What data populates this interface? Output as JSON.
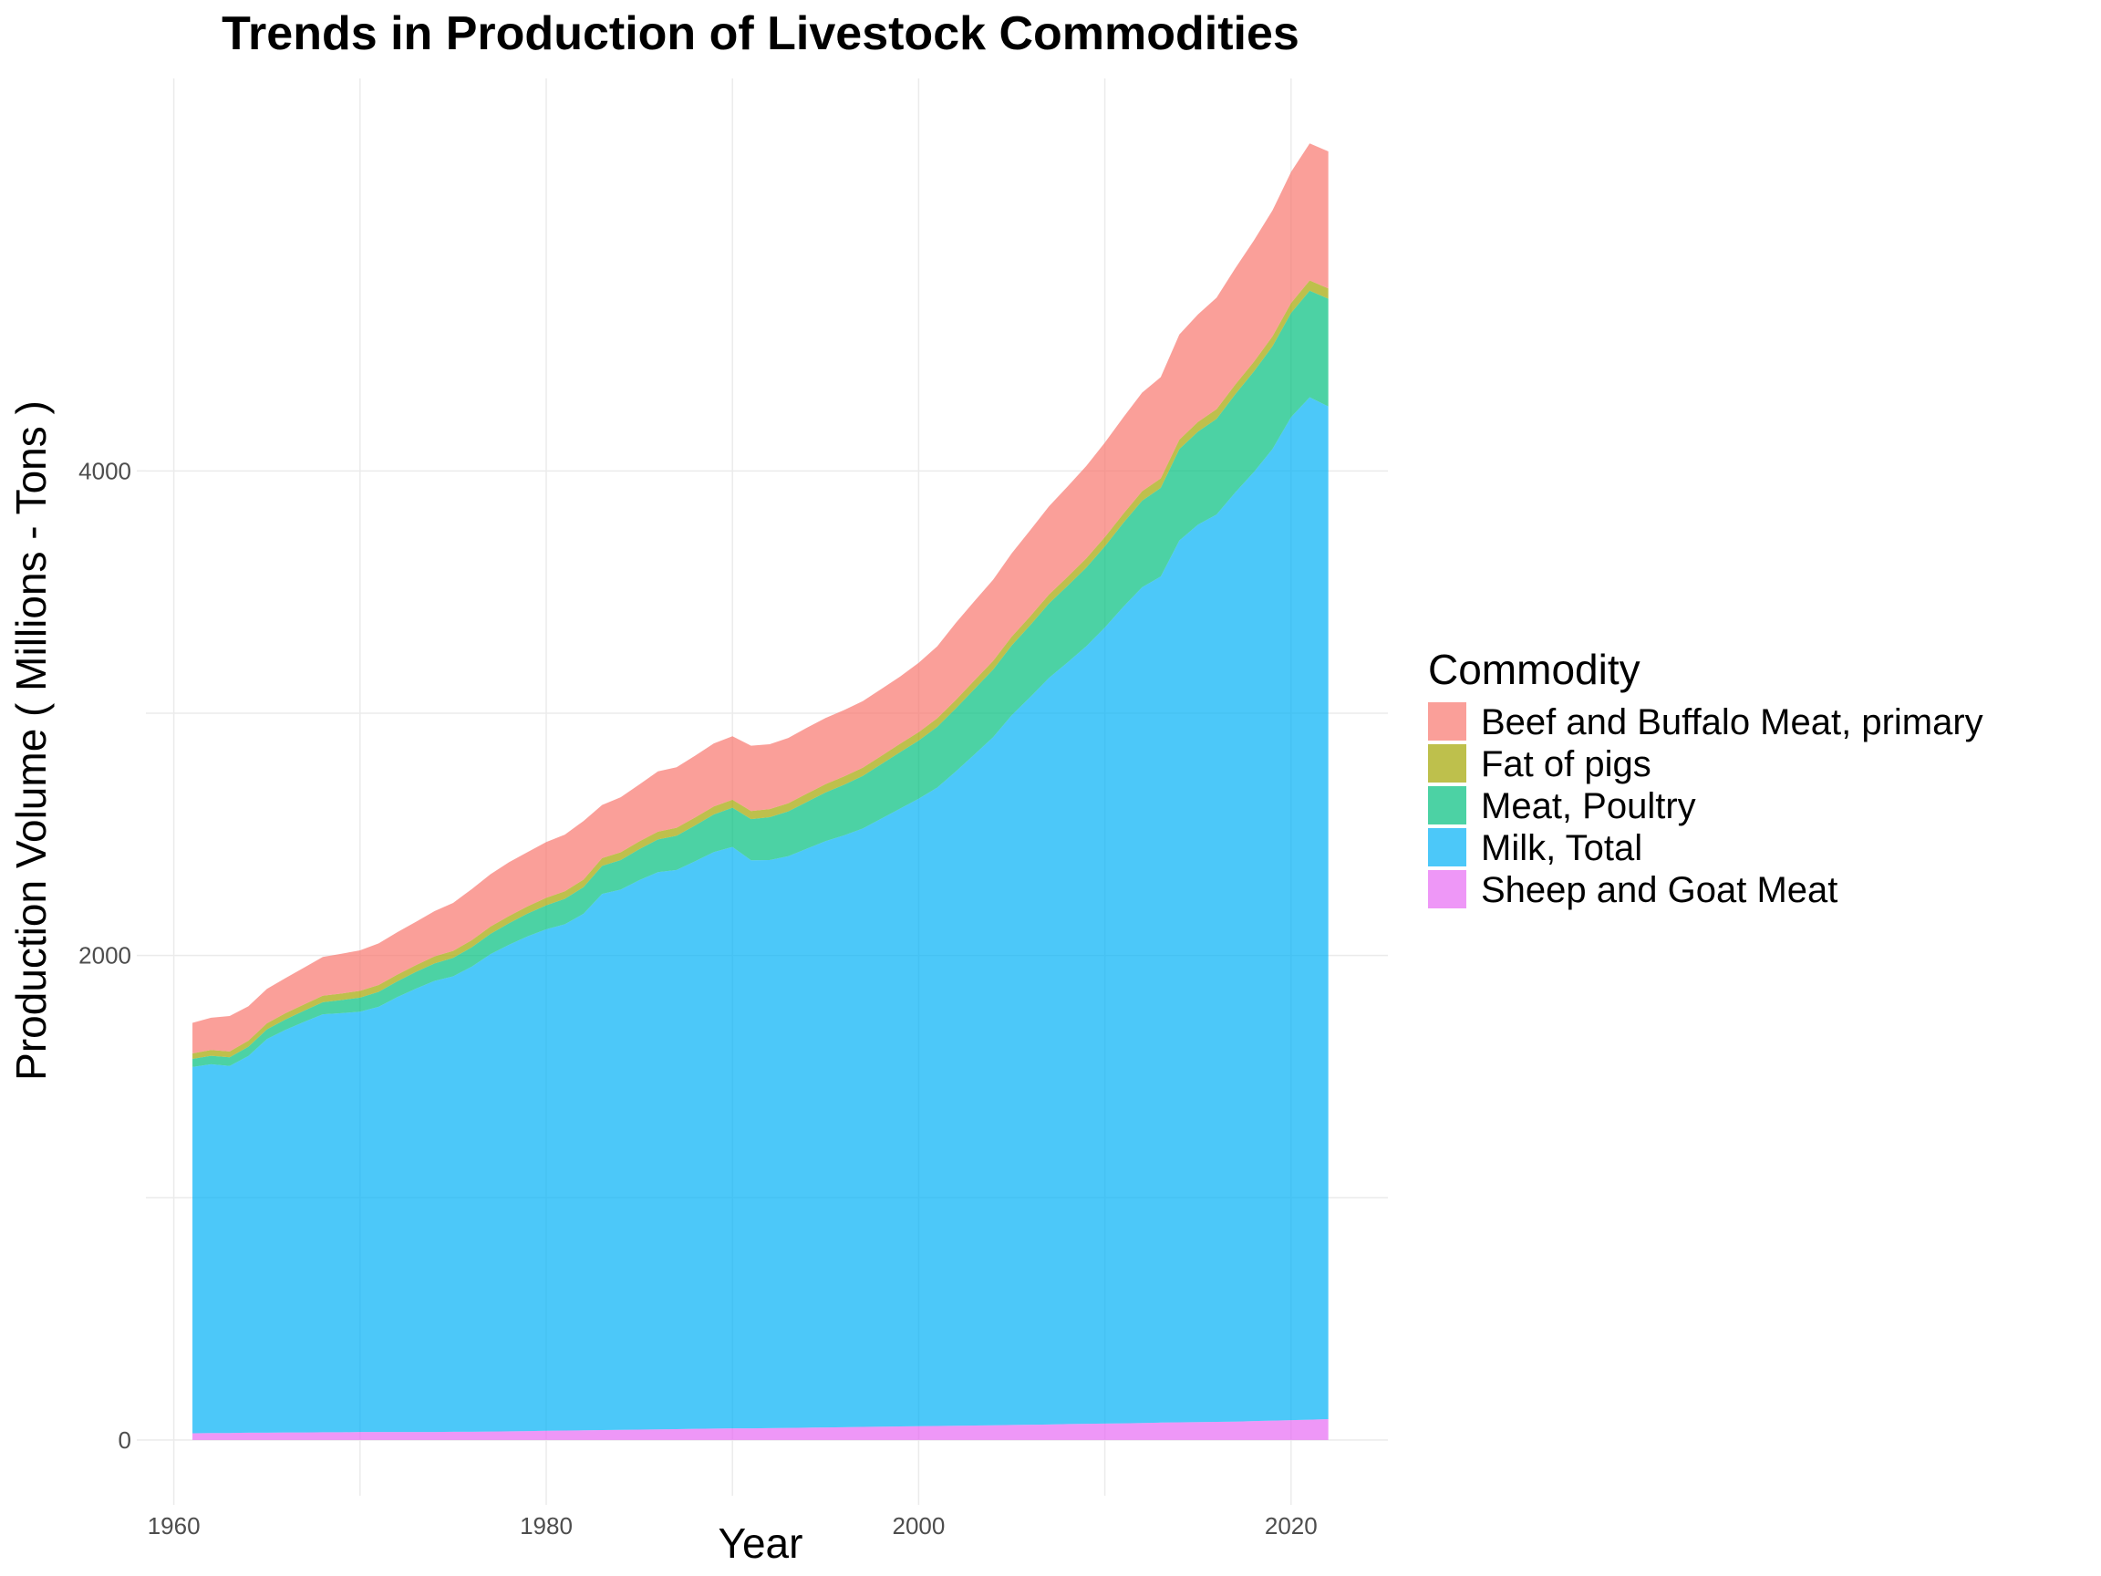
{
  "chart_data": {
    "type": "area",
    "stacked": true,
    "title": "Trends in Production of Livestock Commodities",
    "xlabel": "Year",
    "ylabel": "Production Volume ( Millions - Tons )",
    "xlim": [
      1958.5,
      2025.2
    ],
    "ylim": [
      -230,
      5620
    ],
    "x_ticks": [
      1960,
      1980,
      2000,
      2020
    ],
    "y_ticks": [
      0,
      2000,
      4000
    ],
    "grid": true,
    "legend": {
      "title": "Commodity",
      "position": "right",
      "entries": [
        {
          "name": "Beef and Buffalo Meat, primary",
          "color": "#F8766D"
        },
        {
          "name": "Fat of pigs",
          "color": "#A3A500"
        },
        {
          "name": "Meat, Poultry",
          "color": "#00BF7D"
        },
        {
          "name": "Milk, Total",
          "color": "#00B0F6"
        },
        {
          "name": "Sheep and Goat Meat",
          "color": "#E76BF3"
        }
      ]
    },
    "fill_opacity": 0.7,
    "x": [
      1961,
      1962,
      1963,
      1964,
      1965,
      1966,
      1967,
      1968,
      1969,
      1970,
      1971,
      1972,
      1973,
      1974,
      1975,
      1976,
      1977,
      1978,
      1979,
      1980,
      1981,
      1982,
      1983,
      1984,
      1985,
      1986,
      1987,
      1988,
      1989,
      1990,
      1991,
      1992,
      1993,
      1994,
      1995,
      1996,
      1997,
      1998,
      1999,
      2000,
      2001,
      2002,
      2003,
      2004,
      2005,
      2006,
      2007,
      2008,
      2009,
      2010,
      2011,
      2012,
      2013,
      2014,
      2015,
      2016,
      2017,
      2018,
      2019,
      2020,
      2021,
      2022
    ],
    "series": [
      {
        "name": "Sheep and Goat Meat",
        "color": "#E76BF3",
        "values": [
          28,
          29,
          29,
          30,
          30,
          31,
          31,
          32,
          32,
          33,
          33,
          33,
          33,
          33,
          34,
          34,
          35,
          36,
          37,
          38,
          39,
          40,
          41,
          42,
          43,
          44,
          45,
          46,
          47,
          48,
          48,
          49,
          50,
          51,
          52,
          53,
          54,
          55,
          56,
          57,
          58,
          59,
          60,
          61,
          62,
          63,
          64,
          66,
          67,
          68,
          69,
          70,
          72,
          73,
          74,
          75,
          76,
          78,
          80,
          82,
          84,
          86
        ]
      },
      {
        "name": "Milk, Total",
        "color": "#00B0F6",
        "values": [
          1512,
          1522,
          1515,
          1555,
          1625,
          1662,
          1695,
          1725,
          1730,
          1735,
          1755,
          1795,
          1830,
          1862,
          1880,
          1920,
          1970,
          2008,
          2042,
          2070,
          2090,
          2132,
          2213,
          2230,
          2268,
          2300,
          2308,
          2343,
          2380,
          2400,
          2345,
          2345,
          2360,
          2390,
          2420,
          2443,
          2470,
          2510,
          2550,
          2590,
          2635,
          2701,
          2770,
          2840,
          2930,
          3004,
          3082,
          3144,
          3209,
          3286,
          3371,
          3450,
          3492,
          3640,
          3704,
          3745,
          3835,
          3917,
          4010,
          4140,
          4220,
          4180
        ]
      },
      {
        "name": "Meat, Poultry",
        "color": "#00BF7D",
        "values": [
          33,
          35,
          36,
          38,
          40,
          43,
          46,
          50,
          54,
          58,
          62,
          65,
          69,
          72,
          76,
          80,
          84,
          89,
          94,
          99,
          105,
          110,
          116,
          122,
          128,
          135,
          141,
          148,
          155,
          162,
          170,
          177,
          185,
          193,
          201,
          209,
          217,
          225,
          233,
          240,
          251,
          260,
          270,
          279,
          288,
          297,
          307,
          316,
          325,
          335,
          346,
          357,
          366,
          377,
          384,
          395,
          405,
          415,
          424,
          430,
          440,
          445
        ]
      },
      {
        "name": "Fat of pigs",
        "color": "#A3A500",
        "values": [
          23,
          24,
          24,
          25,
          25,
          26,
          26,
          27,
          27,
          28,
          28,
          28,
          28,
          29,
          29,
          29,
          30,
          30,
          30,
          31,
          31,
          31,
          32,
          32,
          32,
          32,
          33,
          33,
          33,
          33,
          33,
          33,
          33,
          34,
          34,
          34,
          34,
          34,
          35,
          35,
          35,
          35,
          36,
          36,
          36,
          37,
          37,
          37,
          38,
          38,
          38,
          39,
          39,
          39,
          40,
          40,
          40,
          40,
          41,
          41,
          42,
          42
        ]
      },
      {
        "name": "Beef and Buffalo Meat, primary",
        "color": "#F8766D",
        "values": [
          126,
          133,
          146,
          142,
          142,
          145,
          152,
          160,
          164,
          167,
          172,
          175,
          179,
          187,
          198,
          211,
          216,
          222,
          224,
          230,
          234,
          242,
          219,
          227,
          235,
          249,
          250,
          255,
          260,
          262,
          270,
          268,
          270,
          272,
          273,
          274,
          275,
          276,
          277,
          286,
          297,
          318,
          327,
          335,
          344,
          355,
          364,
          373,
          381,
          390,
          398,
          407,
          418,
          434,
          444,
          460,
          480,
          501,
          520,
          541,
          566,
          566
        ]
      }
    ]
  }
}
